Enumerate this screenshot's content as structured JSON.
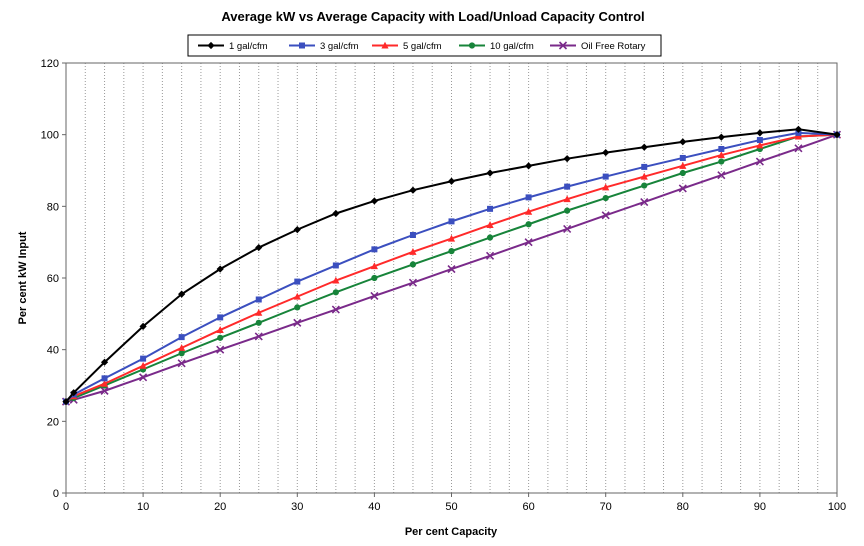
{
  "chart_data": {
    "type": "line",
    "title": "Average kW vs Average Capacity with Load/Unload Capacity Control",
    "xlabel": "Per cent Capacity",
    "ylabel": "Per cent kW Input",
    "xlim": [
      0,
      100
    ],
    "ylim": [
      0,
      120
    ],
    "x_ticks": [
      "0",
      "10",
      "20",
      "30",
      "40",
      "50",
      "60",
      "70",
      "80",
      "90",
      "100"
    ],
    "y_ticks": [
      "0",
      "20",
      "40",
      "60",
      "80",
      "100",
      "120"
    ],
    "grid": "vertical dotted every 2.5% capacity",
    "legend_position": "top-center",
    "x": [
      0,
      1,
      5,
      10,
      15,
      20,
      25,
      30,
      35,
      40,
      45,
      50,
      55,
      60,
      65,
      70,
      75,
      80,
      85,
      90,
      95,
      100
    ],
    "series": [
      {
        "name": "1 gal/cfm",
        "color": "#000000",
        "marker": "diamond",
        "values": [
          25.5,
          28,
          36.5,
          46.5,
          55.5,
          62.5,
          68.5,
          73.5,
          78,
          81.5,
          84.5,
          87,
          89.3,
          91.3,
          93.3,
          95,
          96.5,
          98,
          99.3,
          100.5,
          101.5,
          100
        ]
      },
      {
        "name": "3 gal/cfm",
        "color": "#3b4fbf",
        "marker": "square",
        "values": [
          25.5,
          27.5,
          32,
          37.5,
          43.5,
          49,
          54,
          59,
          63.5,
          68,
          72,
          75.8,
          79.3,
          82.5,
          85.5,
          88.3,
          91,
          93.5,
          96,
          98.5,
          100.5,
          100
        ]
      },
      {
        "name": "5 gal/cfm",
        "color": "#ff2a2a",
        "marker": "triangle",
        "values": [
          25.5,
          27,
          30.5,
          35.5,
          40.5,
          45.5,
          50.3,
          54.8,
          59.3,
          63.3,
          67.3,
          71,
          74.8,
          78.5,
          82,
          85.3,
          88.3,
          91.3,
          94.3,
          97,
          99.5,
          100
        ]
      },
      {
        "name": "10 gal/cfm",
        "color": "#17843a",
        "marker": "circle",
        "values": [
          25.5,
          26.5,
          30,
          34.5,
          39,
          43.3,
          47.5,
          51.8,
          56,
          60,
          63.8,
          67.5,
          71.3,
          75,
          78.8,
          82.3,
          85.8,
          89.3,
          92.5,
          96,
          99.5,
          100
        ]
      },
      {
        "name": "Oil Free Rotary",
        "color": "#7a2a8a",
        "marker": "x",
        "values": [
          25.5,
          26,
          28.5,
          32.3,
          36.2,
          40,
          43.7,
          47.5,
          51.2,
          55,
          58.7,
          62.5,
          66.2,
          70,
          73.7,
          77.5,
          81.2,
          85,
          88.7,
          92.5,
          96.2,
          100
        ]
      }
    ]
  }
}
